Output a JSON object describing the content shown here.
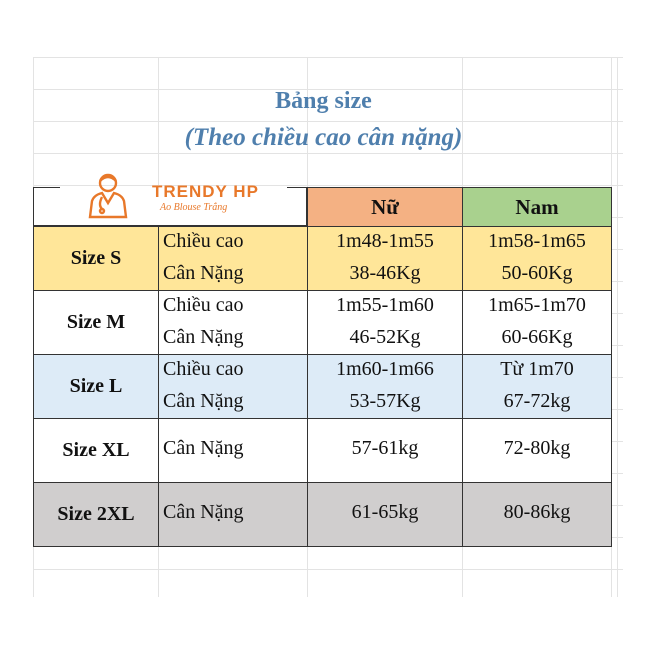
{
  "header": {
    "title": "Bảng size",
    "subtitle": "(Theo chiều cao cân nặng)"
  },
  "logo": {
    "brand": "TRENDY HP",
    "tagline": "Ao Blouse Trắng"
  },
  "table": {
    "columns": [
      "Nữ",
      "Nam"
    ],
    "rows": [
      {
        "size": "Size S",
        "lines": [
          {
            "label": "Chiều cao",
            "values": [
              "1m48-1m55",
              "1m58-1m65"
            ]
          },
          {
            "label": "Cân Nặng",
            "values": [
              "38-46Kg",
              "50-60Kg"
            ]
          }
        ]
      },
      {
        "size": "Size M",
        "lines": [
          {
            "label": "Chiều cao",
            "values": [
              "1m55-1m60",
              "1m65-1m70"
            ]
          },
          {
            "label": "Cân Nặng",
            "values": [
              "46-52Kg",
              "60-66Kg"
            ]
          }
        ]
      },
      {
        "size": "Size L",
        "lines": [
          {
            "label": "Chiều cao",
            "values": [
              "1m60-1m66",
              "Từ 1m70"
            ]
          },
          {
            "label": "Cân Nặng",
            "values": [
              "53-57Kg",
              "67-72kg"
            ]
          }
        ]
      },
      {
        "size": "Size XL",
        "lines": [
          {
            "label": "Cân Nặng",
            "values": [
              "57-61kg",
              "72-80kg"
            ]
          }
        ]
      },
      {
        "size": "Size 2XL",
        "lines": [
          {
            "label": "Cân Nặng",
            "values": [
              "61-65kg",
              "80-86kg"
            ]
          }
        ]
      }
    ]
  }
}
